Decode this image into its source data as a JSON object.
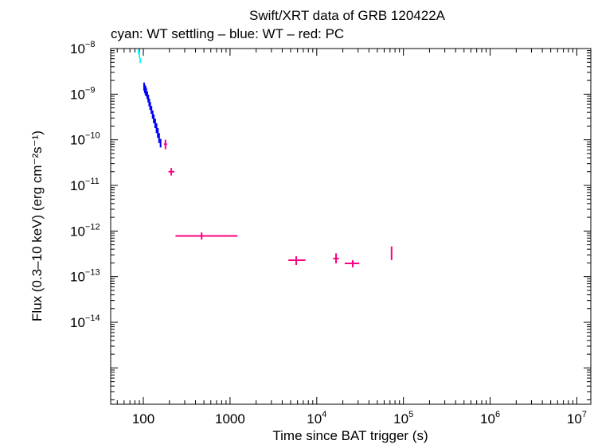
{
  "chart_data": {
    "type": "scatter",
    "title": "Swift/XRT data of GRB 120422A",
    "subtitle": "cyan: WT settling – blue: WT – red: PC",
    "xlabel": "Time since BAT trigger (s)",
    "ylabel": "Flux (0.3–10 keV) (erg cm⁻²s⁻¹)",
    "x_scale": "log",
    "y_scale": "log",
    "xlim": [
      42,
      14500000
    ],
    "ylim": [
      1.6e-16,
      1e-08
    ],
    "x_ticks": [
      {
        "value": 100,
        "label": "100"
      },
      {
        "value": 1000,
        "label": "1000"
      },
      {
        "value": 10000,
        "base": "10",
        "exp": "4"
      },
      {
        "value": 100000,
        "base": "10",
        "exp": "5"
      },
      {
        "value": 1000000,
        "base": "10",
        "exp": "6"
      },
      {
        "value": 10000000,
        "base": "10",
        "exp": "7"
      }
    ],
    "y_ticks": [
      {
        "value": 1e-08,
        "base": "10",
        "exp": "−8"
      },
      {
        "value": 1e-09,
        "base": "10",
        "exp": "−9"
      },
      {
        "value": 1e-10,
        "base": "10",
        "exp": "−10"
      },
      {
        "value": 1e-11,
        "base": "10",
        "exp": "−11"
      },
      {
        "value": 1e-12,
        "base": "10",
        "exp": "−12"
      },
      {
        "value": 1e-13,
        "base": "10",
        "exp": "−13"
      },
      {
        "value": 1e-14,
        "base": "10",
        "exp": "−14"
      }
    ],
    "grid": false,
    "series": [
      {
        "color": "#00ffff",
        "points": [
          {
            "x": 88,
            "y": 8.5e-09,
            "xlo": 87,
            "xhi": 89,
            "ylo": 7.5e-09,
            "yhi": 9.5e-09
          },
          {
            "x": 90,
            "y": 7e-09,
            "xlo": 89,
            "xhi": 91,
            "ylo": 6.2e-09,
            "yhi": 7.9e-09
          },
          {
            "x": 92,
            "y": 5.5e-09,
            "xlo": 91,
            "xhi": 93,
            "ylo": 4.8e-09,
            "yhi": 6.2e-09
          }
        ]
      },
      {
        "color": "#0000ff",
        "points": [
          {
            "x": 102,
            "y": 1.5e-09,
            "xlo": 101,
            "xhi": 103,
            "ylo": 1.2e-09,
            "yhi": 1.8e-09
          },
          {
            "x": 104,
            "y": 1.3e-09,
            "xlo": 103,
            "xhi": 105,
            "ylo": 1.05e-09,
            "yhi": 1.6e-09
          },
          {
            "x": 106,
            "y": 1.2e-09,
            "xlo": 105,
            "xhi": 107,
            "ylo": 9.5e-10,
            "yhi": 1.5e-09
          },
          {
            "x": 108,
            "y": 1.1e-09,
            "xlo": 107,
            "xhi": 109,
            "ylo": 9e-10,
            "yhi": 1.35e-09
          },
          {
            "x": 111,
            "y": 9.5e-10,
            "xlo": 110,
            "xhi": 112,
            "ylo": 7.8e-10,
            "yhi": 1.15e-09
          },
          {
            "x": 114,
            "y": 8e-10,
            "xlo": 113,
            "xhi": 115,
            "ylo": 6.6e-10,
            "yhi": 9.7e-10
          },
          {
            "x": 117,
            "y": 6.6e-10,
            "xlo": 116,
            "xhi": 118,
            "ylo": 5.4e-10,
            "yhi": 8e-10
          },
          {
            "x": 120,
            "y": 5.5e-10,
            "xlo": 119,
            "xhi": 121,
            "ylo": 4.5e-10,
            "yhi": 6.7e-10
          },
          {
            "x": 124,
            "y": 4.5e-10,
            "xlo": 123,
            "xhi": 125,
            "ylo": 3.7e-10,
            "yhi": 5.5e-10
          },
          {
            "x": 128,
            "y": 3.6e-10,
            "xlo": 127,
            "xhi": 129,
            "ylo": 2.9e-10,
            "yhi": 4.4e-10
          },
          {
            "x": 132,
            "y": 2.9e-10,
            "xlo": 131,
            "xhi": 133,
            "ylo": 2.3e-10,
            "yhi": 3.6e-10
          },
          {
            "x": 137,
            "y": 2.3e-10,
            "xlo": 136,
            "xhi": 138,
            "ylo": 1.8e-10,
            "yhi": 2.9e-10
          },
          {
            "x": 142,
            "y": 1.8e-10,
            "xlo": 141,
            "xhi": 143,
            "ylo": 1.4e-10,
            "yhi": 2.3e-10
          },
          {
            "x": 147,
            "y": 1.4e-10,
            "xlo": 146,
            "xhi": 148,
            "ylo": 1.1e-10,
            "yhi": 1.8e-10
          },
          {
            "x": 152,
            "y": 1.1e-10,
            "xlo": 151,
            "xhi": 153,
            "ylo": 8.5e-11,
            "yhi": 1.4e-10
          },
          {
            "x": 158,
            "y": 8.5e-11,
            "xlo": 157,
            "xhi": 159,
            "ylo": 6.8e-11,
            "yhi": 1.05e-10
          }
        ]
      },
      {
        "color": "#ff0080",
        "points": [
          {
            "x": 180,
            "y": 8e-11,
            "xlo": 173,
            "xhi": 188,
            "ylo": 6.2e-11,
            "yhi": 1e-10
          },
          {
            "x": 210,
            "y": 2e-11,
            "xlo": 195,
            "xhi": 228,
            "ylo": 1.65e-11,
            "yhi": 2.4e-11
          },
          {
            "x": 470,
            "y": 7.8e-13,
            "xlo": 235,
            "xhi": 1220,
            "ylo": 6.5e-13,
            "yhi": 9.3e-13
          },
          {
            "x": 5800,
            "y": 2.3e-13,
            "xlo": 4700,
            "xhi": 7400,
            "ylo": 1.8e-13,
            "yhi": 2.8e-13
          },
          {
            "x": 16700,
            "y": 2.5e-13,
            "xlo": 15500,
            "xhi": 18000,
            "ylo": 1.95e-13,
            "yhi": 3.25e-13
          },
          {
            "x": 26000,
            "y": 1.95e-13,
            "xlo": 21000,
            "xhi": 31000,
            "ylo": 1.6e-13,
            "yhi": 2.3e-13
          },
          {
            "x": 73000,
            "y": 3.2e-13,
            "xlo": 72000,
            "xhi": 74000,
            "ylo": 2.3e-13,
            "yhi": 4.6e-13
          }
        ]
      }
    ]
  }
}
